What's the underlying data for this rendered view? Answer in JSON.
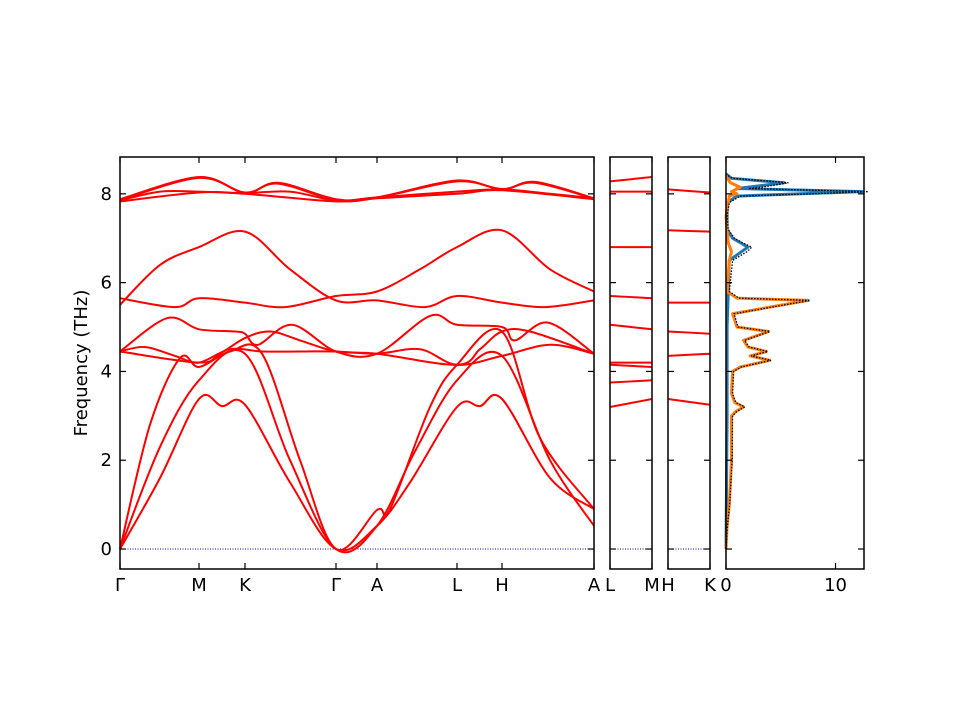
{
  "chart_data": {
    "type": "line",
    "ylabel": "Frequency (THz)",
    "ylim": [
      -0.45,
      8.83
    ],
    "yticks": [
      0,
      2,
      4,
      6,
      8
    ],
    "band_color": "#ff0000",
    "zero_line_color": "#0000aa",
    "panels": [
      {
        "xlim": [
          0,
          4.74
        ],
        "ticks": [
          {
            "label": "Γ",
            "x": 0
          },
          {
            "label": "M",
            "x": 0.79
          },
          {
            "label": "K",
            "x": 1.25
          },
          {
            "label": "Γ",
            "x": 2.16
          },
          {
            "label": "A",
            "x": 2.57
          },
          {
            "label": "L",
            "x": 3.37
          },
          {
            "label": "H",
            "x": 3.82
          },
          {
            "label": "A",
            "x": 4.74
          }
        ],
        "bands": [
          [
            [
              0,
              0
            ],
            [
              0.4,
              1.6
            ],
            [
              0.79,
              3.38
            ],
            [
              1.02,
              3.22
            ],
            [
              1.25,
              3.25
            ],
            [
              1.7,
              1.5
            ],
            [
              2.16,
              0
            ],
            [
              2.57,
              0.52
            ],
            [
              2.9,
              1.5
            ],
            [
              3.37,
              3.2
            ],
            [
              3.6,
              3.22
            ],
            [
              3.82,
              3.38
            ],
            [
              4.3,
              1.6
            ],
            [
              4.74,
              0.9
            ]
          ],
          [
            [
              0,
              0
            ],
            [
              0.4,
              2.3
            ],
            [
              0.79,
              3.8
            ],
            [
              1.25,
              4.4
            ],
            [
              1.7,
              2.0
            ],
            [
              2.16,
              0
            ],
            [
              2.57,
              0.52
            ],
            [
              2.95,
              2.2
            ],
            [
              3.37,
              3.8
            ],
            [
              3.82,
              4.35
            ],
            [
              4.3,
              2.0
            ],
            [
              4.74,
              0.52
            ]
          ],
          [
            [
              0,
              0
            ],
            [
              0.3,
              2.8
            ],
            [
              0.6,
              4.3
            ],
            [
              0.79,
              4.1
            ],
            [
              1.1,
              4.45
            ],
            [
              1.42,
              4.4
            ],
            [
              1.8,
              2.0
            ],
            [
              2.16,
              0
            ],
            [
              2.57,
              0.88
            ],
            [
              2.7,
              0.9
            ],
            [
              3.1,
              3.2
            ],
            [
              3.37,
              4.15
            ],
            [
              3.82,
              4.9
            ],
            [
              4.2,
              2.5
            ],
            [
              4.74,
              0.9
            ]
          ],
          [
            [
              0,
              4.45
            ],
            [
              0.25,
              4.55
            ],
            [
              0.55,
              4.35
            ],
            [
              0.79,
              4.2
            ],
            [
              1.1,
              4.5
            ],
            [
              1.42,
              4.45
            ],
            [
              1.8,
              4.45
            ],
            [
              2.16,
              4.45
            ],
            [
              2.57,
              4.4
            ],
            [
              3.0,
              4.5
            ],
            [
              3.37,
              4.15
            ],
            [
              3.82,
              4.35
            ],
            [
              4.3,
              4.6
            ],
            [
              4.74,
              4.4
            ]
          ],
          [
            [
              0,
              4.45
            ],
            [
              0.47,
              5.2
            ],
            [
              0.79,
              4.95
            ],
            [
              1.15,
              4.9
            ],
            [
              1.25,
              4.85
            ],
            [
              1.38,
              4.6
            ],
            [
              1.72,
              5.05
            ],
            [
              2.16,
              4.45
            ],
            [
              2.57,
              4.4
            ],
            [
              3.1,
              5.25
            ],
            [
              3.37,
              5.05
            ],
            [
              3.82,
              5.0
            ],
            [
              3.95,
              4.7
            ],
            [
              4.28,
              5.1
            ],
            [
              4.74,
              4.4
            ]
          ],
          [
            [
              0,
              4.45
            ],
            [
              0.79,
              4.2
            ],
            [
              1.0,
              4.4
            ],
            [
              1.25,
              4.75
            ],
            [
              1.5,
              4.9
            ],
            [
              1.8,
              4.7
            ],
            [
              2.16,
              4.45
            ],
            [
              2.57,
              4.4
            ],
            [
              3.37,
              4.15
            ],
            [
              3.6,
              4.5
            ],
            [
              3.82,
              4.9
            ],
            [
              4.1,
              4.9
            ],
            [
              4.74,
              4.4
            ]
          ],
          [
            [
              0,
              5.65
            ],
            [
              0.55,
              5.45
            ],
            [
              0.79,
              5.65
            ],
            [
              1.25,
              5.55
            ],
            [
              1.65,
              5.45
            ],
            [
              2.16,
              5.7
            ],
            [
              2.57,
              5.8
            ],
            [
              3.0,
              6.3
            ],
            [
              3.37,
              6.8
            ],
            [
              3.82,
              7.18
            ],
            [
              4.3,
              6.3
            ],
            [
              4.74,
              5.8
            ]
          ],
          [
            [
              0,
              5.5
            ],
            [
              0.4,
              6.4
            ],
            [
              0.79,
              6.8
            ],
            [
              1.25,
              7.15
            ],
            [
              1.7,
              6.3
            ],
            [
              2.16,
              5.6
            ],
            [
              2.57,
              5.6
            ],
            [
              3.05,
              5.45
            ],
            [
              3.37,
              5.7
            ],
            [
              3.82,
              5.55
            ],
            [
              4.25,
              5.45
            ],
            [
              4.74,
              5.6
            ]
          ],
          [
            [
              0,
              7.85
            ],
            [
              0.4,
              8.05
            ],
            [
              0.79,
              8.05
            ],
            [
              1.25,
              8.02
            ],
            [
              1.7,
              8.05
            ],
            [
              2.16,
              7.85
            ],
            [
              2.57,
              7.92
            ],
            [
              3.37,
              8.05
            ],
            [
              3.82,
              8.1
            ],
            [
              4.3,
              8.0
            ],
            [
              4.74,
              7.9
            ]
          ],
          [
            [
              0,
              7.88
            ],
            [
              0.79,
              8.38
            ],
            [
              1.25,
              8.02
            ],
            [
              1.58,
              8.25
            ],
            [
              2.16,
              7.88
            ],
            [
              2.57,
              7.92
            ],
            [
              3.37,
              8.3
            ],
            [
              3.82,
              8.1
            ],
            [
              4.15,
              8.27
            ],
            [
              4.74,
              7.9
            ]
          ],
          [
            [
              0,
              7.83
            ],
            [
              0.79,
              8.03
            ],
            [
              1.25,
              8.0
            ],
            [
              2.16,
              7.83
            ],
            [
              2.57,
              7.9
            ],
            [
              3.37,
              8.0
            ],
            [
              3.82,
              8.08
            ],
            [
              4.74,
              7.88
            ]
          ],
          [
            [
              0,
              7.86
            ],
            [
              0.79,
              8.36
            ],
            [
              1.25,
              8.03
            ],
            [
              1.58,
              8.23
            ],
            [
              2.16,
              7.86
            ],
            [
              2.57,
              7.91
            ],
            [
              3.37,
              8.28
            ],
            [
              3.82,
              8.11
            ],
            [
              4.15,
              8.25
            ],
            [
              4.74,
              7.89
            ]
          ]
        ]
      },
      {
        "xlim": [
          0,
          0.42
        ],
        "ticks": [
          {
            "label": "L",
            "x": 0
          },
          {
            "label": "M",
            "x": 0.42
          }
        ],
        "bands": [
          [
            [
              0,
              8.28
            ],
            [
              0.42,
              8.38
            ]
          ],
          [
            [
              0,
              8.05
            ],
            [
              0.42,
              8.05
            ]
          ],
          [
            [
              0,
              6.8
            ],
            [
              0.42,
              6.8
            ]
          ],
          [
            [
              0,
              5.7
            ],
            [
              0.42,
              5.65
            ]
          ],
          [
            [
              0,
              5.05
            ],
            [
              0.42,
              4.95
            ]
          ],
          [
            [
              0,
              4.2
            ],
            [
              0.42,
              4.2
            ]
          ],
          [
            [
              0,
              4.15
            ],
            [
              0.42,
              4.1
            ]
          ],
          [
            [
              0,
              3.75
            ],
            [
              0.42,
              3.8
            ]
          ],
          [
            [
              0,
              3.2
            ],
            [
              0.42,
              3.38
            ]
          ]
        ]
      },
      {
        "xlim": [
          0,
          0.42
        ],
        "ticks": [
          {
            "label": "H",
            "x": 0
          },
          {
            "label": "K",
            "x": 0.42
          }
        ],
        "bands": [
          [
            [
              0,
              8.1
            ],
            [
              0.42,
              8.03
            ]
          ],
          [
            [
              0,
              7.18
            ],
            [
              0.42,
              7.15
            ]
          ],
          [
            [
              0,
              5.55
            ],
            [
              0.42,
              5.55
            ]
          ],
          [
            [
              0,
              4.9
            ],
            [
              0.42,
              4.85
            ]
          ],
          [
            [
              0,
              4.35
            ],
            [
              0.42,
              4.4
            ]
          ],
          [
            [
              0,
              3.38
            ],
            [
              0.42,
              3.25
            ]
          ]
        ]
      }
    ],
    "dos": {
      "xlim": [
        0,
        12.6
      ],
      "xticks": [
        0,
        10
      ],
      "series": [
        {
          "color": "#1f77b4",
          "points": [
            [
              0,
              0
            ],
            [
              3,
              0.1
            ],
            [
              5,
              0.1
            ],
            [
              6.5,
              0.3
            ],
            [
              6.8,
              2.0
            ],
            [
              7.0,
              0.6
            ],
            [
              7.2,
              0.1
            ],
            [
              7.8,
              0.1
            ],
            [
              7.95,
              1.0
            ],
            [
              8.05,
              12.5
            ],
            [
              8.12,
              1.0
            ],
            [
              8.25,
              5.3
            ],
            [
              8.35,
              0.5
            ],
            [
              8.45,
              0
            ]
          ]
        },
        {
          "color": "#ff7f0e",
          "points": [
            [
              0,
              0
            ],
            [
              0.5,
              0.1
            ],
            [
              1,
              0.3
            ],
            [
              2,
              0.5
            ],
            [
              3,
              0.5
            ],
            [
              3.1,
              0.9
            ],
            [
              3.2,
              1.6
            ],
            [
              3.3,
              0.8
            ],
            [
              3.5,
              0.5
            ],
            [
              4.0,
              0.6
            ],
            [
              4.1,
              1.3
            ],
            [
              4.25,
              4.0
            ],
            [
              4.35,
              2.2
            ],
            [
              4.45,
              3.7
            ],
            [
              4.55,
              2.0
            ],
            [
              4.7,
              1.6
            ],
            [
              4.9,
              3.9
            ],
            [
              5.0,
              1.0
            ],
            [
              5.3,
              0.6
            ],
            [
              5.6,
              7.5
            ],
            [
              5.65,
              1.0
            ],
            [
              5.8,
              0.1
            ],
            [
              6.5,
              0.3
            ],
            [
              6.7,
              0.5
            ],
            [
              6.9,
              0.2
            ],
            [
              7.5,
              0
            ],
            [
              7.95,
              0.3
            ],
            [
              8.0,
              1.0
            ],
            [
              8.05,
              0.5
            ],
            [
              8.15,
              1.3
            ],
            [
              8.25,
              0.4
            ],
            [
              8.4,
              0
            ]
          ]
        }
      ],
      "total_color": "#000000"
    }
  }
}
